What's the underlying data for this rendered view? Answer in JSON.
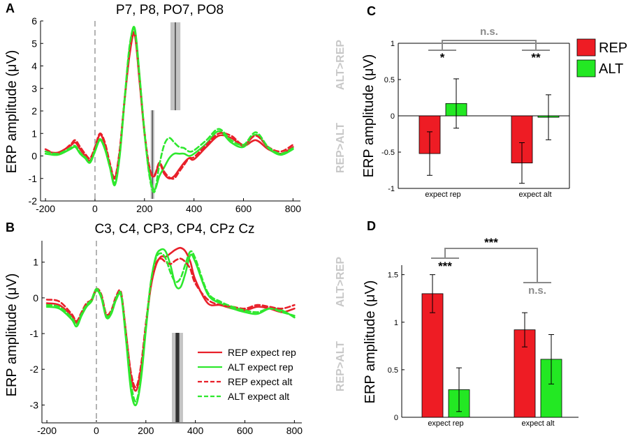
{
  "chart_data": [
    {
      "panel": "A",
      "type": "line",
      "title": "P7, P8, PO7, PO8",
      "xlabel": "",
      "ylabel": "ERP amplitude (μV)",
      "xlim": [
        -220,
        830
      ],
      "ylim": [
        -2,
        6
      ],
      "xticks": [
        -200,
        0,
        200,
        400,
        600,
        800
      ],
      "yticks": [
        -2,
        -1,
        0,
        1,
        2,
        3,
        4,
        5,
        6
      ],
      "side_labels": [
        "ALT>REP",
        "REP>ALT"
      ],
      "shaded_windows": [
        {
          "region": "ALT>REP",
          "x_from": 305,
          "x_to": 345,
          "inner": [
            322,
            327
          ]
        },
        {
          "region": "REP>ALT",
          "x_from": 225,
          "x_to": 240,
          "inner": [
            230,
            234
          ]
        }
      ],
      "series": [
        {
          "name": "REP expect rep",
          "color": "#e8202a",
          "dash": false,
          "x": [
            -200,
            -150,
            -100,
            -80,
            -60,
            -40,
            -20,
            0,
            20,
            40,
            60,
            80,
            100,
            120,
            140,
            160,
            180,
            200,
            220,
            240,
            260,
            280,
            300,
            320,
            340,
            360,
            380,
            400,
            450,
            500,
            550,
            600,
            650,
            700,
            750,
            800
          ],
          "y": [
            0.2,
            0.15,
            0.45,
            0.6,
            0.3,
            0.0,
            -0.2,
            0.3,
            0.95,
            0.5,
            -0.4,
            -1.0,
            0.2,
            2.5,
            4.5,
            5.4,
            3.3,
            1.0,
            -0.6,
            -0.9,
            -0.35,
            -0.8,
            -1.0,
            -0.9,
            -0.6,
            -0.3,
            -0.1,
            -0.15,
            0.4,
            0.9,
            0.8,
            0.45,
            0.7,
            0.3,
            0.1,
            0.4
          ]
        },
        {
          "name": "ALT expect rep",
          "color": "#2ee82e",
          "dash": false,
          "x": [
            -200,
            -150,
            -100,
            -80,
            -60,
            -40,
            -20,
            0,
            20,
            40,
            60,
            80,
            100,
            120,
            140,
            160,
            180,
            200,
            220,
            240,
            260,
            280,
            300,
            320,
            340,
            360,
            380,
            400,
            450,
            500,
            550,
            600,
            650,
            700,
            750,
            800
          ],
          "y": [
            0.1,
            0.05,
            0.3,
            0.4,
            0.1,
            -0.1,
            -0.3,
            0.2,
            0.7,
            0.3,
            -0.5,
            -1.3,
            0.0,
            2.5,
            4.8,
            5.7,
            3.6,
            1.0,
            -0.8,
            -1.5,
            -0.9,
            -0.5,
            -0.1,
            0.1,
            0.1,
            0.1,
            0.0,
            0.1,
            0.55,
            1.1,
            0.6,
            0.4,
            0.95,
            0.35,
            0.05,
            0.3
          ]
        },
        {
          "name": "REP expect alt",
          "color": "#e8202a",
          "dash": true,
          "x": [
            -200,
            -150,
            -100,
            -80,
            -60,
            -40,
            -20,
            0,
            20,
            40,
            60,
            80,
            100,
            120,
            140,
            160,
            180,
            200,
            220,
            240,
            260,
            280,
            300,
            320,
            340,
            360,
            380,
            400,
            450,
            500,
            550,
            600,
            650,
            700,
            750,
            800
          ],
          "y": [
            0.3,
            0.1,
            0.5,
            0.7,
            0.4,
            0.1,
            -0.1,
            0.4,
            1.0,
            0.6,
            -0.3,
            -0.95,
            0.3,
            2.6,
            4.6,
            5.5,
            3.4,
            1.1,
            -0.5,
            -0.85,
            -0.3,
            -0.7,
            -0.95,
            -1.0,
            -0.7,
            -0.4,
            -0.1,
            -0.05,
            0.5,
            1.0,
            0.9,
            0.5,
            0.9,
            0.4,
            0.2,
            0.5
          ]
        },
        {
          "name": "ALT expect alt",
          "color": "#2ee82e",
          "dash": true,
          "x": [
            -200,
            -150,
            -100,
            -80,
            -60,
            -40,
            -20,
            0,
            20,
            40,
            60,
            80,
            100,
            120,
            140,
            160,
            180,
            200,
            220,
            240,
            260,
            280,
            300,
            320,
            340,
            360,
            380,
            400,
            450,
            500,
            550,
            600,
            650,
            700,
            750,
            800
          ],
          "y": [
            0.2,
            0.1,
            0.35,
            0.45,
            0.15,
            -0.05,
            -0.25,
            0.25,
            0.75,
            0.35,
            -0.45,
            -1.2,
            0.1,
            2.6,
            4.9,
            5.6,
            3.5,
            1.1,
            -0.9,
            -1.6,
            -0.4,
            0.5,
            0.8,
            0.6,
            0.4,
            0.35,
            0.2,
            0.25,
            0.7,
            1.2,
            0.7,
            0.5,
            1.05,
            0.4,
            0.1,
            0.35
          ]
        }
      ]
    },
    {
      "panel": "B",
      "type": "line",
      "title": "C3, C4, CP3, CP4, CPz Cz",
      "xlabel": "",
      "ylabel": "ERP amplitude (μV)",
      "xlim": [
        -220,
        830
      ],
      "ylim": [
        -3.5,
        1.6
      ],
      "xticks": [
        -200,
        0,
        200,
        400,
        600,
        800
      ],
      "yticks": [
        -3,
        -2,
        -1,
        0,
        1
      ],
      "side_labels": [
        "ALT>REP",
        "REP>ALT"
      ],
      "shaded_windows": [
        {
          "region": "REP>ALT",
          "x_from": 305,
          "x_to": 350,
          "inner": [
            320,
            335
          ]
        }
      ],
      "legend": [
        "REP expect rep",
        "ALT  expect rep",
        "REP  expect alt",
        "ALT  expect alt"
      ],
      "series": [
        {
          "name": "REP expect rep",
          "color": "#e8202a",
          "dash": false,
          "x": [
            -200,
            -150,
            -100,
            -80,
            -60,
            -40,
            -20,
            0,
            20,
            40,
            60,
            80,
            100,
            120,
            140,
            160,
            180,
            200,
            220,
            240,
            260,
            280,
            300,
            320,
            340,
            360,
            380,
            400,
            450,
            500,
            550,
            600,
            650,
            700,
            750,
            800
          ],
          "y": [
            -0.15,
            -0.2,
            -0.5,
            -0.7,
            -0.45,
            -0.2,
            -0.1,
            0.2,
            0.05,
            -0.5,
            -0.4,
            0.0,
            0.1,
            -1.0,
            -2.2,
            -2.6,
            -2.0,
            -0.8,
            0.3,
            0.9,
            1.15,
            1.15,
            1.25,
            1.35,
            1.4,
            1.3,
            1.0,
            0.5,
            -0.15,
            -0.2,
            -0.3,
            -0.35,
            -0.25,
            -0.3,
            -0.4,
            -0.3
          ]
        },
        {
          "name": "ALT  expect rep",
          "color": "#2ee82e",
          "dash": false,
          "x": [
            -200,
            -150,
            -100,
            -80,
            -60,
            -40,
            -20,
            0,
            20,
            40,
            60,
            80,
            100,
            120,
            140,
            160,
            180,
            200,
            220,
            240,
            260,
            280,
            300,
            320,
            340,
            360,
            380,
            400,
            450,
            500,
            550,
            600,
            650,
            700,
            750,
            800
          ],
          "y": [
            -0.25,
            -0.3,
            -0.6,
            -0.8,
            -0.5,
            -0.25,
            -0.1,
            0.2,
            0.0,
            -0.55,
            -0.45,
            -0.05,
            0.05,
            -1.2,
            -2.6,
            -3.0,
            -2.3,
            -0.9,
            0.4,
            1.15,
            1.35,
            1.3,
            0.9,
            0.35,
            0.3,
            0.7,
            1.2,
            1.0,
            0.1,
            -0.15,
            -0.3,
            -0.4,
            -0.45,
            -0.3,
            -0.35,
            -0.55
          ]
        },
        {
          "name": "REP  expect alt",
          "color": "#e8202a",
          "dash": true,
          "x": [
            -200,
            -150,
            -100,
            -80,
            -60,
            -40,
            -20,
            0,
            20,
            40,
            60,
            80,
            100,
            120,
            140,
            160,
            180,
            200,
            220,
            240,
            260,
            280,
            300,
            320,
            340,
            360,
            380,
            400,
            450,
            500,
            550,
            600,
            650,
            700,
            750,
            800
          ],
          "y": [
            -0.05,
            -0.1,
            -0.45,
            -0.65,
            -0.4,
            -0.15,
            -0.05,
            0.25,
            0.1,
            -0.45,
            -0.35,
            0.05,
            0.15,
            -1.0,
            -2.1,
            -2.5,
            -1.9,
            -0.7,
            0.35,
            0.95,
            1.1,
            1.0,
            0.95,
            1.05,
            1.1,
            1.0,
            0.8,
            0.4,
            -0.05,
            -0.2,
            -0.25,
            -0.3,
            -0.2,
            -0.25,
            -0.3,
            -0.2
          ]
        },
        {
          "name": "ALT  expect alt",
          "color": "#2ee82e",
          "dash": true,
          "x": [
            -200,
            -150,
            -100,
            -80,
            -60,
            -40,
            -20,
            0,
            20,
            40,
            60,
            80,
            100,
            120,
            140,
            160,
            180,
            200,
            220,
            240,
            260,
            280,
            300,
            320,
            340,
            360,
            380,
            400,
            450,
            500,
            550,
            600,
            650,
            700,
            750,
            800
          ],
          "y": [
            -0.2,
            -0.25,
            -0.55,
            -0.75,
            -0.45,
            -0.2,
            -0.05,
            0.25,
            0.05,
            -0.5,
            -0.4,
            0.0,
            0.1,
            -1.1,
            -2.4,
            -2.9,
            -2.2,
            -0.8,
            0.45,
            1.1,
            1.25,
            1.1,
            0.7,
            0.45,
            0.55,
            0.95,
            1.3,
            1.1,
            0.15,
            -0.1,
            -0.25,
            -0.35,
            -0.4,
            -0.3,
            -0.4,
            -0.5
          ]
        }
      ]
    },
    {
      "panel": "C",
      "type": "bar",
      "ylabel": "ERP amplitude (μV)",
      "ylim": [
        -1,
        1
      ],
      "yticks": [
        -1,
        -0.5,
        0,
        0.5,
        1
      ],
      "ytick_labels": [
        "-1",
        "-0.5",
        "0",
        "0.5",
        "1"
      ],
      "categories": [
        "expect rep",
        "expect alt"
      ],
      "series": [
        {
          "name": "REP",
          "color": "#ee1c24",
          "values": [
            -0.52,
            -0.65
          ],
          "err": [
            0.3,
            0.28
          ]
        },
        {
          "name": "ALT",
          "color": "#23e823",
          "values": [
            0.17,
            -0.02
          ],
          "err": [
            0.34,
            0.31
          ]
        }
      ],
      "annotations": {
        "within": [
          "*",
          "**"
        ],
        "between": "n.s."
      },
      "legend": [
        "REP",
        "ALT"
      ]
    },
    {
      "panel": "D",
      "type": "bar",
      "ylabel": "ERP amplitude (μV)",
      "ylim": [
        0,
        1.6
      ],
      "yticks": [
        0,
        0.5,
        1,
        1.5
      ],
      "ytick_labels": [
        "0",
        "0.5",
        "1",
        "1.5"
      ],
      "categories": [
        "expect rep",
        "expect alt"
      ],
      "series": [
        {
          "name": "REP",
          "color": "#ee1c24",
          "values": [
            1.3,
            0.92
          ],
          "err": [
            0.2,
            0.18
          ]
        },
        {
          "name": "ALT",
          "color": "#23e823",
          "values": [
            0.29,
            0.61
          ],
          "err": [
            0.23,
            0.26
          ]
        }
      ],
      "annotations": {
        "within": [
          "***",
          "n.s."
        ],
        "between": "***"
      }
    }
  ]
}
